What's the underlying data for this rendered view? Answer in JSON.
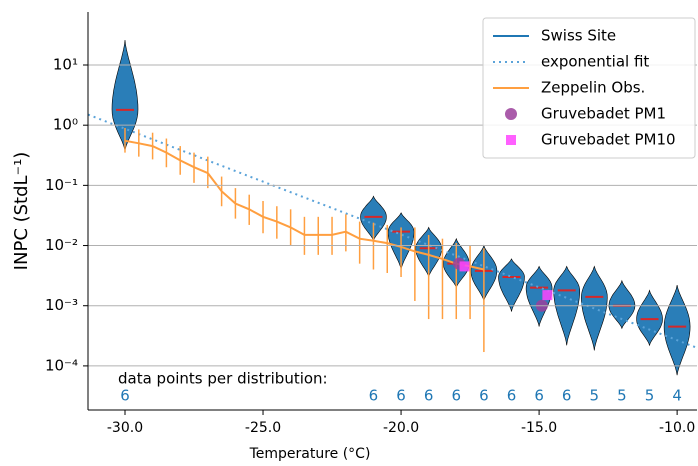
{
  "chart_data": {
    "type": "violin",
    "x_label": "Temperature  (°C)",
    "y_label": "INPC (StdL⁻¹)",
    "annotation": "data points per distribution:",
    "log_y": true,
    "grid": true,
    "legend": "upper right",
    "median_color": "#d62728",
    "xlim": [
      -31.34,
      -9.28
    ],
    "ylim": [
      1.85e-05,
      76
    ],
    "xticks": [
      {
        "value": -30,
        "label": "-30.0"
      },
      {
        "value": -25,
        "label": "-25.0"
      },
      {
        "value": -20,
        "label": "-20.0"
      },
      {
        "value": -15,
        "label": "-15.0"
      },
      {
        "value": -10,
        "label": "-10.0"
      }
    ],
    "yticks": [
      {
        "value": 0.0001,
        "label": "10⁻⁴"
      },
      {
        "value": 0.001,
        "label": "10⁻³"
      },
      {
        "value": 0.01,
        "label": "10⁻²"
      },
      {
        "value": 0.1,
        "label": "10⁻¹"
      },
      {
        "value": 1,
        "label": "10⁰"
      },
      {
        "value": 10,
        "label": "10¹"
      }
    ],
    "counts": [
      6,
      6,
      6,
      6,
      6,
      6,
      6,
      6,
      6,
      5,
      5,
      5,
      4
    ],
    "series": [
      {
        "name": "Swiss Site",
        "kind": "violin",
        "color": "#1f77b4",
        "x": [
          -30,
          -21,
          -20,
          -19,
          -18,
          -17,
          -16,
          -15,
          -14,
          -13,
          -12,
          -11,
          -10
        ],
        "values": [
          1.8,
          0.03,
          0.017,
          0.009,
          0.005,
          0.0038,
          0.003,
          0.002,
          0.0018,
          0.0014,
          0.001,
          0.0006,
          0.00045
        ],
        "low": [
          0.38,
          0.012,
          0.004,
          0.003,
          0.002,
          0.0012,
          0.0008,
          0.00045,
          0.00022,
          0.00018,
          0.00042,
          0.00022,
          7e-05
        ],
        "high": [
          26,
          0.066,
          0.035,
          0.02,
          0.013,
          0.01,
          0.006,
          0.0045,
          0.0045,
          0.0045,
          0.0026,
          0.0018,
          0.0022
        ]
      },
      {
        "name": "exponential fit",
        "kind": "fit",
        "color": "#5ba3d9",
        "x": [
          -31.34,
          -9.28
        ],
        "values": [
          1.5,
          0.0002
        ]
      },
      {
        "name": "Zeppelin Obs.",
        "kind": "line",
        "color": "#ff9f40",
        "x": [
          -30,
          -29.5,
          -29,
          -28.5,
          -28,
          -27.5,
          -27,
          -26.5,
          -26,
          -25.5,
          -25,
          -24.5,
          -24,
          -23.5,
          -23,
          -22.5,
          -22,
          -21.5,
          -21,
          -20.5,
          -20,
          -19.5,
          -19,
          -18.5,
          -18,
          -17.5,
          -17
        ],
        "values": [
          0.55,
          0.5,
          0.45,
          0.35,
          0.26,
          0.2,
          0.16,
          0.08,
          0.05,
          0.04,
          0.03,
          0.025,
          0.02,
          0.015,
          0.015,
          0.015,
          0.017,
          0.013,
          0.012,
          0.011,
          0.0095,
          0.008,
          0.007,
          0.006,
          0.005,
          0.0045,
          0.004
        ],
        "low": [
          0.35,
          0.3,
          0.27,
          0.2,
          0.15,
          0.11,
          0.09,
          0.045,
          0.028,
          0.022,
          0.016,
          0.013,
          0.01,
          0.007,
          0.007,
          0.007,
          0.008,
          0.005,
          0.004,
          0.0035,
          0.003,
          0.0012,
          0.0006,
          0.0006,
          0.0006,
          0.0006,
          0.00017
        ],
        "high": [
          0.9,
          0.85,
          0.75,
          0.6,
          0.45,
          0.35,
          0.3,
          0.14,
          0.09,
          0.07,
          0.055,
          0.045,
          0.04,
          0.03,
          0.03,
          0.03,
          0.033,
          0.025,
          0.024,
          0.022,
          0.02,
          0.02,
          0.015,
          0.013,
          0.011,
          0.01,
          0.009
        ]
      },
      {
        "name": "Gruvebadet PM1",
        "kind": "circle",
        "color": "#9b3f9b",
        "x": [
          -17.9,
          -14.9
        ],
        "values": [
          0.005,
          0.001
        ]
      },
      {
        "name": "Gruvebadet PM10",
        "kind": "square",
        "color": "#ff44ff",
        "x": [
          -17.7,
          -14.7
        ],
        "values": [
          0.0045,
          0.0015
        ]
      }
    ]
  }
}
